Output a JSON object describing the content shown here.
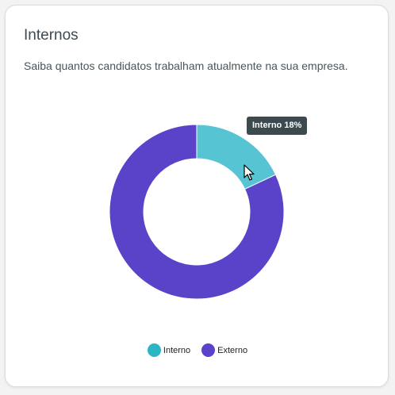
{
  "card": {
    "title": "Internos",
    "subtitle": "Saiba quantos candidatos trabalham atualmente na sua empresa."
  },
  "tooltip": {
    "text": "Interno 18%"
  },
  "colors": {
    "interno": "#56c4d3",
    "externo": "#5a43c8",
    "interno_legend": "#2bb5c5",
    "externo_legend": "#5a43c8"
  },
  "chart_data": {
    "type": "pie",
    "donut": true,
    "categories": [
      "Interno",
      "Externo"
    ],
    "values": [
      18,
      82
    ],
    "unit": "%",
    "legend": "bottom-center"
  }
}
